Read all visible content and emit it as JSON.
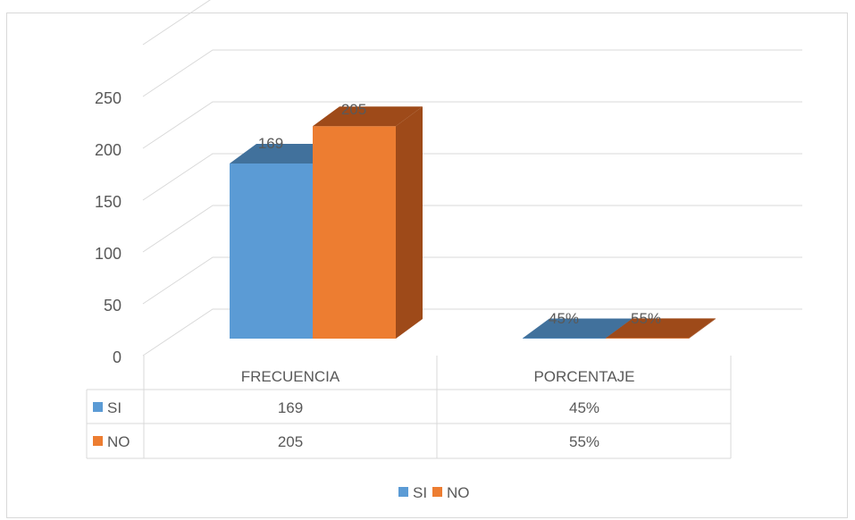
{
  "chart_data": {
    "type": "bar",
    "subtype": "3d-clustered-column-with-data-table",
    "categories": [
      "FRECUENCIA",
      "PORCENTAJE"
    ],
    "series": [
      {
        "name": "SI",
        "values": [
          169,
          0.45
        ],
        "labels": [
          "169",
          "45%"
        ]
      },
      {
        "name": "NO",
        "values": [
          205,
          0.55
        ],
        "labels": [
          "205",
          "55%"
        ]
      }
    ],
    "y_ticks": [
      "0",
      "50",
      "100",
      "150",
      "200",
      "250"
    ],
    "ylim": [
      0,
      300
    ],
    "grid": true,
    "legend_position": "bottom",
    "data_table": {
      "rows": [
        {
          "legend": "SI",
          "cells": [
            "169",
            "45%"
          ]
        },
        {
          "legend": "NO",
          "cells": [
            "205",
            "55%"
          ]
        }
      ]
    },
    "legend": [
      "SI",
      "NO"
    ],
    "colors": {
      "SI": "#5b9bd5",
      "NO": "#ed7d31",
      "SI_side": "#41719c",
      "NO_side": "#9e4a19"
    }
  }
}
